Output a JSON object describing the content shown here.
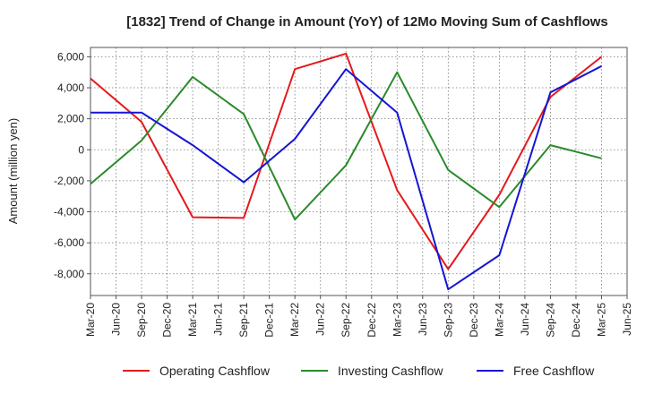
{
  "chart_data": {
    "type": "line",
    "title": "[1832]  Trend of Change in Amount (YoY) of 12Mo Moving Sum of Cashflows",
    "ylabel": "Amount (million yen)",
    "xlabel": "",
    "ylim": [
      -9400,
      6600
    ],
    "yticks": [
      -8000,
      -6000,
      -4000,
      -2000,
      0,
      2000,
      4000,
      6000
    ],
    "ytick_labels": [
      "-8,000",
      "-6,000",
      "-4,000",
      "-2,000",
      "0",
      "2,000",
      "4,000",
      "6,000"
    ],
    "categories": [
      "Mar-20",
      "Jun-20",
      "Sep-20",
      "Dec-20",
      "Mar-21",
      "Jun-21",
      "Sep-21",
      "Dec-21",
      "Mar-22",
      "Jun-22",
      "Sep-22",
      "Dec-22",
      "Mar-23",
      "Jun-23",
      "Sep-23",
      "Dec-23",
      "Mar-24",
      "Jun-24",
      "Sep-24",
      "Dec-24",
      "Mar-25",
      "Jun-25"
    ],
    "grid": true,
    "legend_position": "bottom",
    "series": [
      {
        "name": "Operating Cashflow",
        "color": "#e41a1c",
        "values": [
          4600,
          null,
          1800,
          null,
          -4350,
          null,
          -4400,
          null,
          5200,
          null,
          6200,
          null,
          -2600,
          null,
          -7700,
          null,
          -2900,
          null,
          3400,
          null,
          6000,
          null
        ]
      },
      {
        "name": "Investing Cashflow",
        "color": "#2a8a2a",
        "values": [
          -2200,
          null,
          600,
          null,
          4700,
          null,
          2300,
          null,
          -4500,
          null,
          -1000,
          null,
          5000,
          null,
          -1300,
          null,
          -3700,
          null,
          300,
          null,
          -550,
          null
        ]
      },
      {
        "name": "Free Cashflow",
        "color": "#1515d4",
        "values": [
          2400,
          null,
          2400,
          null,
          300,
          null,
          -2100,
          null,
          700,
          null,
          5200,
          null,
          2400,
          null,
          -9000,
          null,
          -6800,
          null,
          3700,
          null,
          5400,
          null
        ]
      }
    ]
  }
}
